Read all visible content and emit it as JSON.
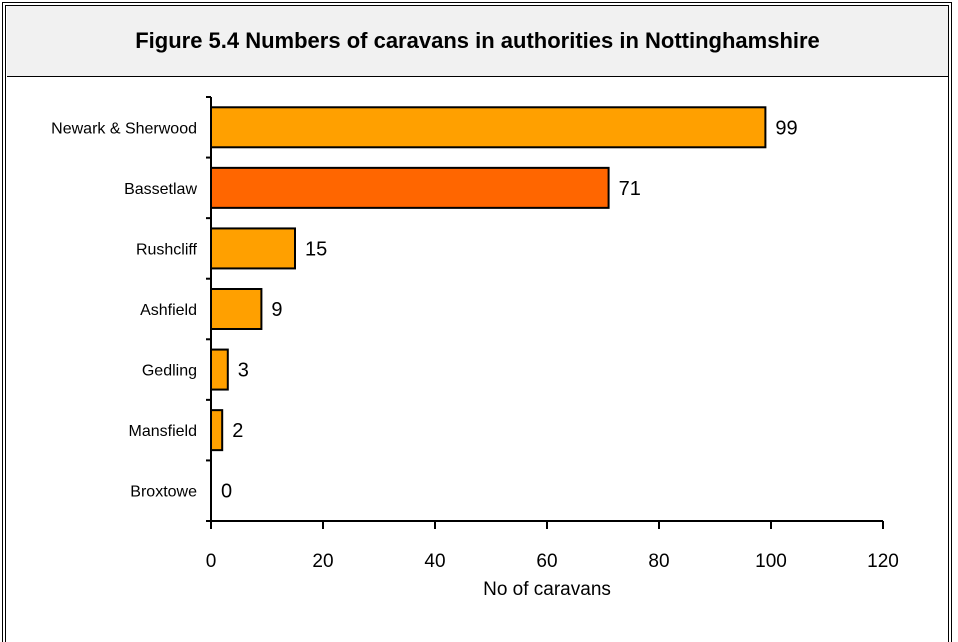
{
  "header": {
    "title": "Figure 5.4 Numbers of caravans in authorities in Nottinghamshire"
  },
  "chart_data": {
    "type": "bar",
    "orientation": "horizontal",
    "title": "Figure 5.4 Numbers of caravans in authorities in Nottinghamshire",
    "categories": [
      "Newark & Sherwood",
      "Bassetlaw",
      "Rushcliff",
      "Ashfield",
      "Gedling",
      "Mansfield",
      "Broxtowe"
    ],
    "values": [
      99,
      71,
      15,
      9,
      3,
      2,
      0
    ],
    "colors": [
      "#FFA000",
      "#FF6600",
      "#FFA000",
      "#FFA000",
      "#FFA000",
      "#FFA000",
      "#FFA000"
    ],
    "xlabel": "No of caravans",
    "ylabel": "",
    "xlim": [
      0,
      120
    ],
    "xticks": [
      0,
      20,
      40,
      60,
      80,
      100,
      120
    ],
    "grid": false,
    "legend": "none"
  }
}
